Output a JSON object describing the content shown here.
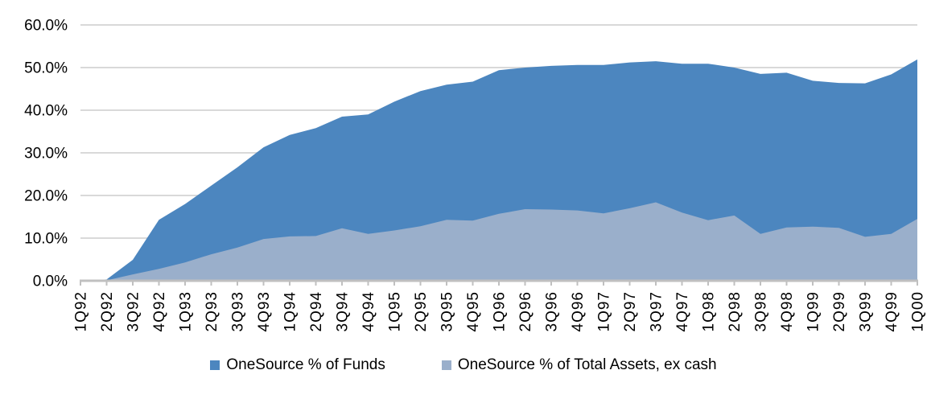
{
  "chart_data": {
    "type": "area",
    "mode": "overlapping",
    "title": "",
    "xlabel": "",
    "ylabel": "",
    "categories": [
      "1Q92",
      "2Q92",
      "3Q92",
      "4Q92",
      "1Q93",
      "2Q93",
      "3Q93",
      "4Q93",
      "1Q94",
      "2Q94",
      "3Q94",
      "4Q94",
      "1Q95",
      "2Q95",
      "3Q95",
      "4Q95",
      "1Q96",
      "2Q96",
      "3Q96",
      "4Q96",
      "1Q97",
      "2Q97",
      "3Q97",
      "4Q97",
      "1Q98",
      "2Q98",
      "3Q98",
      "4Q98",
      "1Q99",
      "2Q99",
      "3Q99",
      "4Q99",
      "1Q00"
    ],
    "series": [
      {
        "name": "OneSource % of Funds",
        "color": "#4C86BF",
        "values": [
          0,
          0.3,
          4.9,
          14.3,
          18.0,
          22.3,
          26.6,
          31.3,
          34.2,
          35.8,
          38.5,
          39.0,
          42.0,
          44.5,
          46.0,
          46.7,
          49.4,
          50.0,
          50.4,
          50.6,
          50.6,
          51.2,
          51.5,
          50.9,
          50.9,
          50.0,
          48.5,
          48.8,
          46.9,
          46.4,
          46.3,
          48.4,
          51.9
        ]
      },
      {
        "name": "OneSource % of Total Assets, ex cash",
        "color": "#9AAFCB",
        "values": [
          0,
          0.1,
          1.5,
          2.8,
          4.3,
          6.2,
          7.8,
          9.8,
          10.4,
          10.5,
          12.3,
          11.0,
          11.8,
          12.8,
          14.3,
          14.1,
          15.7,
          16.8,
          16.7,
          16.5,
          15.8,
          17.0,
          18.4,
          16.0,
          14.2,
          15.3,
          11.0,
          12.5,
          12.7,
          12.4,
          10.3,
          11.0,
          14.5
        ]
      }
    ],
    "y_ticks": [
      "0.0%",
      "10.0%",
      "20.0%",
      "30.0%",
      "40.0%",
      "50.0%",
      "60.0%"
    ],
    "ylim": [
      0,
      60
    ],
    "grid": true,
    "grid_color": "#D9D9D9",
    "axis_color": "#C0C0C0",
    "text_color": "#000000",
    "legend_position": "bottom"
  }
}
